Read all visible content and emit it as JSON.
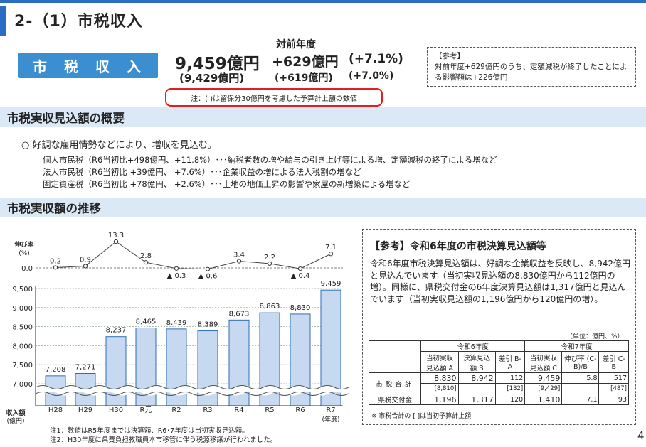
{
  "header": {
    "title": "2-（1）市税収入"
  },
  "kpi": {
    "badge_label": "市税収入",
    "amount": "9,459億円",
    "amount_budget": "(9,429億円)",
    "yoy_label": "対前年度",
    "yoy_amount": "+629億円",
    "yoy_pct": "(+7.1%)",
    "yoy_amount_budget": "(+619億円)",
    "yoy_pct_budget": "(+7.0%)",
    "note": "注：( )は留保分30億円を考慮した予算計上額の数値"
  },
  "reference_top": {
    "title": "【参考】",
    "body": "対前年度+629億円のうち、定額減税が終了したことによる影響額は+226億円"
  },
  "overview": {
    "heading": "市税実収見込額の概要",
    "bullet": "○ 好調な雇用情勢などにより、増収を見込む。",
    "items": [
      "個人市民税（R6当初比+498億円、+11.8%）･･･納税者数の増や給与の引き上げ等による増、定額減税の終了による増など",
      "法人市民税（R6当初比 +39億円、 +7.6%）･･･企業収益の増による法人税割の増など",
      "固定資産税（R6当初比 +78億円、 +2.6%）･･･土地の地価上昇の影響や家屋の新増築による増など"
    ]
  },
  "trend": {
    "heading": "市税実収額の推移"
  },
  "chart_data": {
    "type": "bar",
    "categories": [
      "H28",
      "H29",
      "H30",
      "R元",
      "R2",
      "R3",
      "R4",
      "R5",
      "R6",
      "R7"
    ],
    "series": [
      {
        "name": "収入額",
        "values": [
          7208,
          7271,
          8237,
          8465,
          8439,
          8389,
          8673,
          8863,
          8830,
          9459
        ]
      },
      {
        "name": "伸び率",
        "values": [
          0.2,
          0.9,
          13.3,
          2.8,
          -0.3,
          -0.6,
          3.4,
          2.2,
          -0.4,
          7.1
        ]
      }
    ],
    "value_labels": [
      "7,208",
      "7,271",
      "8,237",
      "8,465",
      "8,439",
      "8,389",
      "8,673",
      "8,863",
      "8,830",
      "9,459"
    ],
    "growth_labels": [
      "0.2",
      "0.9",
      "13.3",
      "2.8",
      "▲ 0.3",
      "▲ 0.6",
      "3.4",
      "2.2",
      "▲ 0.4",
      "7.1"
    ],
    "ylim": [
      6800,
      9500
    ],
    "yticks": [
      "9,500",
      "9,000",
      "8,500",
      "8,000",
      "7,500",
      "7,000"
    ],
    "ytick_values": [
      9500,
      9000,
      8500,
      8000,
      7500,
      7000
    ],
    "growth_ylabel": "伸び率",
    "growth_unit": "(%)",
    "growth_zero": "0.0",
    "ylabel": "収入額",
    "yunit": "(億円)",
    "xunit": "(年度)",
    "bar_color": "#c6d9f0",
    "bar_stroke": "#2f6eb5"
  },
  "chart_notes": [
    "注1：数値はR5年度までは決算額、R6･7年度は当初実収見込額。",
    "注2：H30年度に県費負担教職員本市移管に伴う税源移譲が行われました。"
  ],
  "reference_r6": {
    "title": "【参考】令和6年度の市税決算見込額等",
    "body": "令和6年度市税決算見込額は、好調な企業収益を反映し、8,942億円と見込んでいます（当初実収見込額の8,830億円から112億円の増）。同様に、県税交付金の6年度決算見込額は1,317億円と見込んでいます（当初実収見込額の1,196億円から120億円の増）。",
    "unit": "（単位：億円、%）",
    "table": {
      "group_r6": "令和6年度",
      "group_r7": "令和7年度",
      "headers": [
        "当初実収見込額 A",
        "決算見込額 B",
        "差引 B-A",
        "当初実収見込額 C",
        "伸び率 (C-B)/B",
        "差引 C-B"
      ],
      "rows": [
        {
          "label": "市税合計",
          "cells": [
            "8,830",
            "8,942",
            "112",
            "9,459",
            "5.8",
            "517"
          ],
          "sub": [
            "[8,810]",
            "",
            "[132]",
            "[9,429]",
            "",
            "[487]"
          ]
        },
        {
          "label": "県税交付金",
          "cells": [
            "1,196",
            "1,317",
            "120",
            "1,410",
            "7.1",
            "93"
          ]
        }
      ]
    },
    "table_note": "※ 市税合計の [ ]は当初予算計上額"
  },
  "page_number": "4"
}
